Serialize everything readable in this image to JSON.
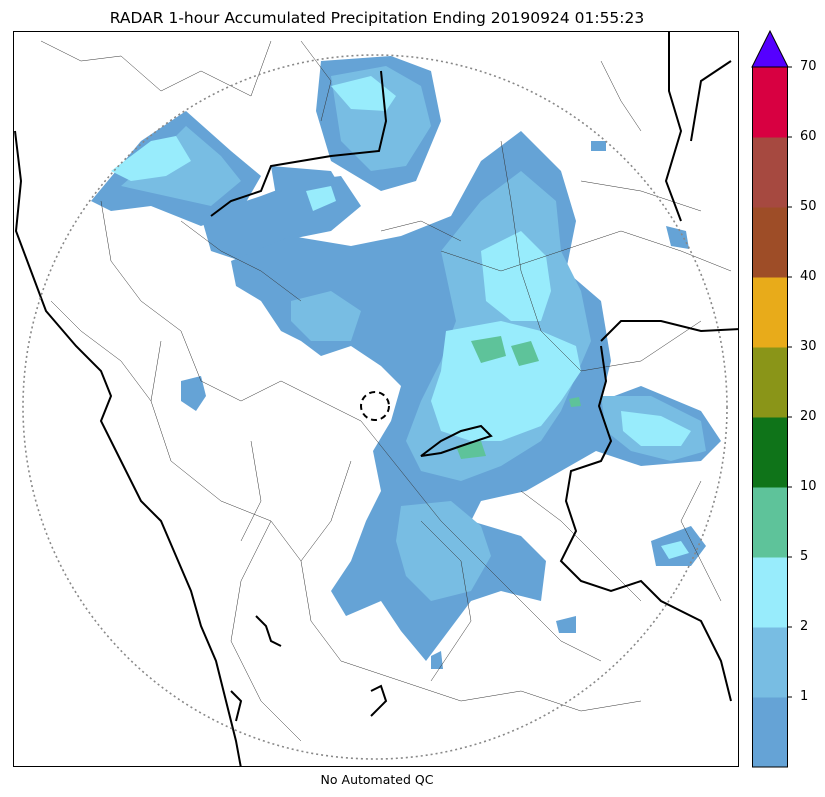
{
  "title": "RADAR 1-hour Accumulated Precipitation Ending 20190924 01:55:23",
  "footer": "No Automated QC",
  "colorbar": {
    "extend": "max",
    "extend_color": "#5500ff",
    "max_label": "70",
    "levels": [
      {
        "label": "",
        "color": "#65a3d6"
      },
      {
        "label": "1",
        "color": "#78bde3"
      },
      {
        "label": "2",
        "color": "#98ecfc"
      },
      {
        "label": "5",
        "color": "#5ec39a"
      },
      {
        "label": "10",
        "color": "#0f7419"
      },
      {
        "label": "20",
        "color": "#8a9518"
      },
      {
        "label": "30",
        "color": "#e8ab1a"
      },
      {
        "label": "40",
        "color": "#9e4d27"
      },
      {
        "label": "50",
        "color": "#a64940"
      },
      {
        "label": "60",
        "color": "#d80041"
      }
    ]
  },
  "map": {
    "range_ring": "dotted",
    "radar_site_marker": "dashed circle"
  }
}
